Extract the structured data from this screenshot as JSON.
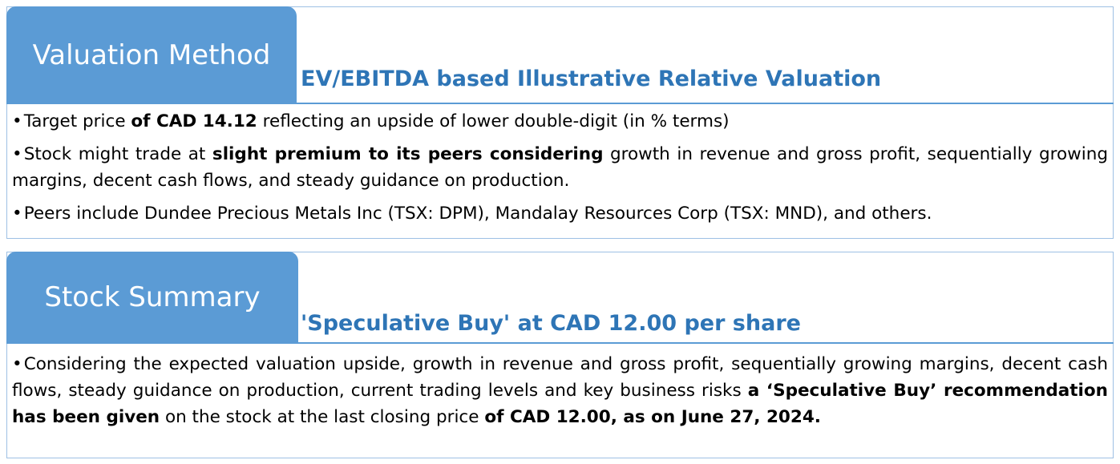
{
  "sections": [
    {
      "tab_label": "Valuation Method",
      "subtitle": "EV/EBITDA based Illustrative Relative Valuation",
      "bullets": [
        {
          "parts": [
            {
              "text": "Target price ",
              "bold": false
            },
            {
              "text": "of CAD 14.12",
              "bold": true
            },
            {
              "text": " reflecting an upside of lower double-digit (in % terms)",
              "bold": false
            }
          ]
        },
        {
          "parts": [
            {
              "text": "Stock might trade at ",
              "bold": false
            },
            {
              "text": "slight premium to its peers considering",
              "bold": true
            },
            {
              "text": " growth in revenue and gross profit, sequentially growing margins, decent cash flows, and steady guidance on production.",
              "bold": false
            }
          ]
        },
        {
          "parts": [
            {
              "text": "Peers include Dundee Precious Metals Inc (TSX: DPM), Mandalay Resources Corp (TSX: MND), and others.",
              "bold": false
            }
          ]
        }
      ]
    },
    {
      "tab_label": "Stock Summary",
      "subtitle": "'Speculative Buy' at CAD 12.00 per share",
      "bullets": [
        {
          "parts": [
            {
              "text": "Considering the expected valuation upside, growth in revenue and gross profit, sequentially growing margins, decent cash flows, steady guidance on production, current trading levels and key business risks ",
              "bold": false
            },
            {
              "text": "a ‘Speculative Buy’ recommendation has been given",
              "bold": true
            },
            {
              "text": " on the stock at the last closing price ",
              "bold": false
            },
            {
              "text": "of CAD 12.00, as on June 27, 2024.",
              "bold": true
            }
          ]
        }
      ]
    }
  ]
}
